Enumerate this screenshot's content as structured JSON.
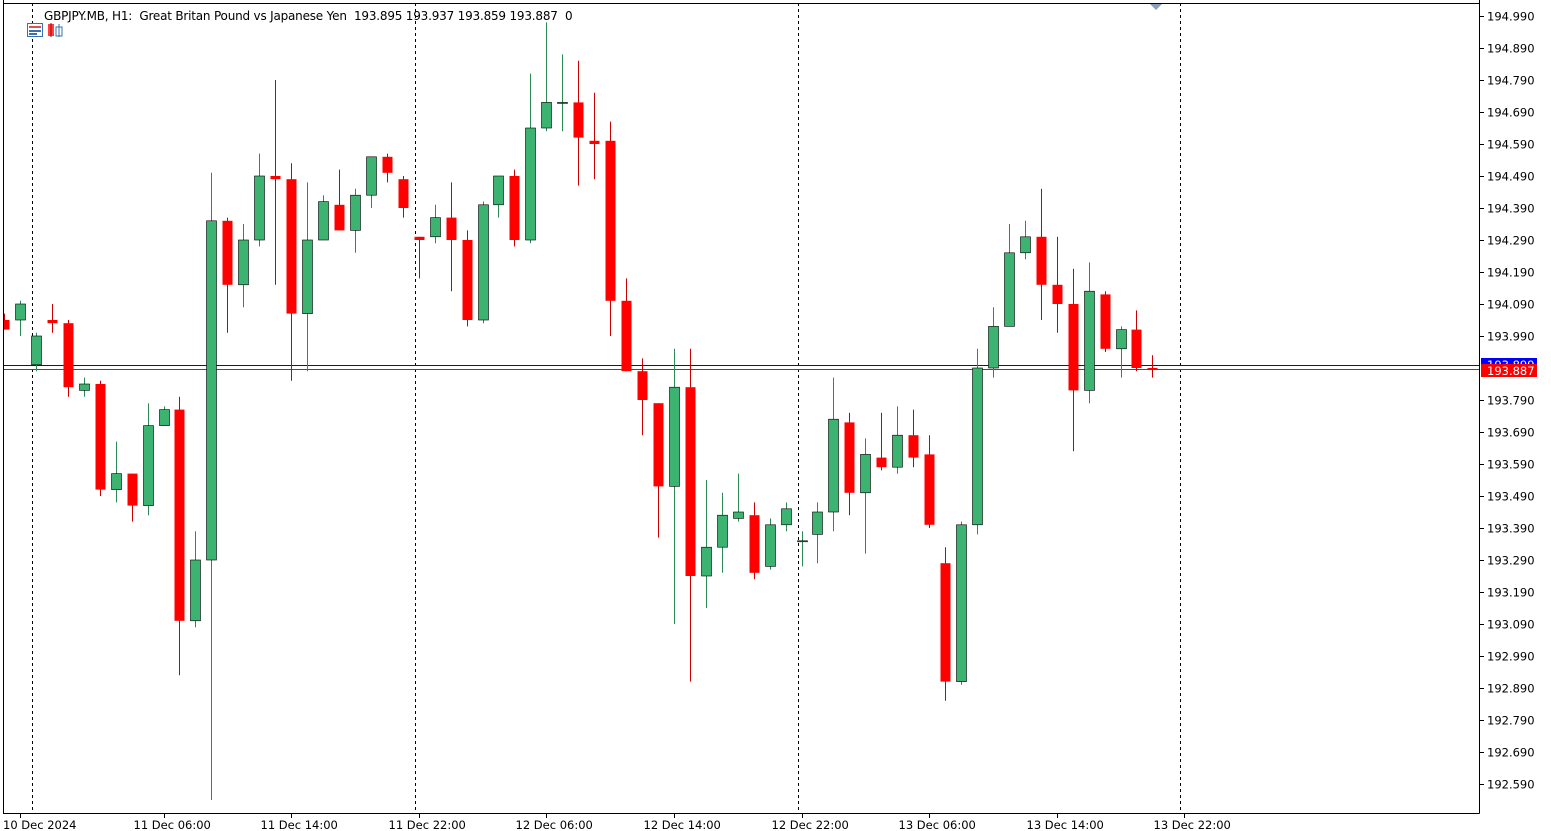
{
  "header": {
    "symbol": "GBPJPY.MB, H1:",
    "description": "Great Britan Pound vs Japanese Yen",
    "ohlc": "193.895 193.937 193.859 193.887",
    "volume": "0"
  },
  "colors": {
    "bull": "#3cb371",
    "bear": "#ff0000",
    "wick_bull": "#2e8b57",
    "wick_bear": "#cc0000",
    "bid_line": "#ff0000",
    "ask_line": "#0000ff",
    "grid": "#000000",
    "axis": "#000000"
  },
  "price_labels": {
    "ask": "193.899",
    "bid": "193.887"
  },
  "chart_data": {
    "type": "candlestick",
    "timeframe": "H1",
    "ylim": [
      192.51,
      195.02
    ],
    "y_ticks": [
      "194.990",
      "194.890",
      "194.790",
      "194.690",
      "194.590",
      "194.490",
      "194.390",
      "194.290",
      "194.190",
      "194.090",
      "193.990",
      "193.790",
      "193.690",
      "193.590",
      "193.490",
      "193.390",
      "193.290",
      "193.190",
      "193.090",
      "192.990",
      "192.890",
      "192.790",
      "192.690",
      "192.590"
    ],
    "x_labels": [
      "10 Dec 2024",
      "11 Dec 06:00",
      "11 Dec 14:00",
      "11 Dec 22:00",
      "12 Dec 06:00",
      "12 Dec 14:00",
      "12 Dec 22:00",
      "13 Dec 06:00",
      "13 Dec 14:00",
      "13 Dec 22:00"
    ],
    "x_label_bar_index": [
      1,
      10,
      18,
      26,
      34,
      42,
      50,
      58,
      66,
      74
    ],
    "day_separator_bar_index": [
      1.75,
      25.75,
      49.75,
      73.75
    ],
    "ask_price": 193.899,
    "bid_price": 193.887,
    "candles": [
      {
        "o": 194.04,
        "h": 194.06,
        "l": 194.01,
        "c": 194.01
      },
      {
        "o": 194.04,
        "h": 194.1,
        "l": 193.99,
        "c": 194.09
      },
      {
        "o": 193.9,
        "h": 194.0,
        "l": 193.88,
        "c": 193.99
      },
      {
        "o": 194.04,
        "h": 194.09,
        "l": 194.0,
        "c": 194.03
      },
      {
        "o": 194.03,
        "h": 194.04,
        "l": 193.8,
        "c": 193.83
      },
      {
        "o": 193.82,
        "h": 193.86,
        "l": 193.8,
        "c": 193.84
      },
      {
        "o": 193.84,
        "h": 193.85,
        "l": 193.49,
        "c": 193.51
      },
      {
        "o": 193.51,
        "h": 193.66,
        "l": 193.47,
        "c": 193.56
      },
      {
        "o": 193.56,
        "h": 193.56,
        "l": 193.41,
        "c": 193.46
      },
      {
        "o": 193.46,
        "h": 193.78,
        "l": 193.43,
        "c": 193.71
      },
      {
        "o": 193.71,
        "h": 193.77,
        "l": 193.71,
        "c": 193.76
      },
      {
        "o": 193.76,
        "h": 193.8,
        "l": 192.93,
        "c": 193.1
      },
      {
        "o": 193.1,
        "h": 193.38,
        "l": 193.08,
        "c": 193.29
      },
      {
        "o": 193.29,
        "h": 194.5,
        "l": 192.54,
        "c": 194.35
      },
      {
        "o": 194.35,
        "h": 194.36,
        "l": 194.0,
        "c": 194.15
      },
      {
        "o": 194.15,
        "h": 194.34,
        "l": 194.08,
        "c": 194.29
      },
      {
        "o": 194.29,
        "h": 194.56,
        "l": 194.27,
        "c": 194.49
      },
      {
        "o": 194.49,
        "h": 194.79,
        "l": 194.15,
        "c": 194.48
      },
      {
        "o": 194.48,
        "h": 194.53,
        "l": 193.85,
        "c": 194.06
      },
      {
        "o": 194.06,
        "h": 194.47,
        "l": 193.88,
        "c": 194.29
      },
      {
        "o": 194.29,
        "h": 194.43,
        "l": 194.29,
        "c": 194.41
      },
      {
        "o": 194.4,
        "h": 194.51,
        "l": 194.32,
        "c": 194.32
      },
      {
        "o": 194.32,
        "h": 194.45,
        "l": 194.25,
        "c": 194.43
      },
      {
        "o": 194.43,
        "h": 194.55,
        "l": 194.39,
        "c": 194.55
      },
      {
        "o": 194.55,
        "h": 194.56,
        "l": 194.47,
        "c": 194.5
      },
      {
        "o": 194.48,
        "h": 194.49,
        "l": 194.36,
        "c": 194.39
      },
      {
        "o": 194.3,
        "h": 194.3,
        "l": 194.17,
        "c": 194.29
      },
      {
        "o": 194.3,
        "h": 194.4,
        "l": 194.28,
        "c": 194.36
      },
      {
        "o": 194.36,
        "h": 194.47,
        "l": 194.13,
        "c": 194.29
      },
      {
        "o": 194.29,
        "h": 194.32,
        "l": 194.02,
        "c": 194.04
      },
      {
        "o": 194.04,
        "h": 194.41,
        "l": 194.03,
        "c": 194.4
      },
      {
        "o": 194.4,
        "h": 194.49,
        "l": 194.36,
        "c": 194.49
      },
      {
        "o": 194.49,
        "h": 194.51,
        "l": 194.27,
        "c": 194.29
      },
      {
        "o": 194.29,
        "h": 194.81,
        "l": 194.28,
        "c": 194.64
      },
      {
        "o": 194.64,
        "h": 194.97,
        "l": 194.63,
        "c": 194.72
      },
      {
        "o": 194.72,
        "h": 194.87,
        "l": 194.63,
        "c": 194.72
      },
      {
        "o": 194.72,
        "h": 194.85,
        "l": 194.46,
        "c": 194.61
      },
      {
        "o": 194.6,
        "h": 194.75,
        "l": 194.48,
        "c": 194.59
      },
      {
        "o": 194.6,
        "h": 194.66,
        "l": 193.99,
        "c": 194.1
      },
      {
        "o": 194.1,
        "h": 194.17,
        "l": 193.88,
        "c": 193.88
      },
      {
        "o": 193.88,
        "h": 193.92,
        "l": 193.68,
        "c": 193.79
      },
      {
        "o": 193.78,
        "h": 193.78,
        "l": 193.36,
        "c": 193.52
      },
      {
        "o": 193.52,
        "h": 193.95,
        "l": 193.09,
        "c": 193.83
      },
      {
        "o": 193.83,
        "h": 193.95,
        "l": 192.91,
        "c": 193.24
      },
      {
        "o": 193.24,
        "h": 193.54,
        "l": 193.14,
        "c": 193.33
      },
      {
        "o": 193.33,
        "h": 193.5,
        "l": 193.25,
        "c": 193.43
      },
      {
        "o": 193.42,
        "h": 193.56,
        "l": 193.41,
        "c": 193.44
      },
      {
        "o": 193.43,
        "h": 193.47,
        "l": 193.23,
        "c": 193.25
      },
      {
        "o": 193.27,
        "h": 193.42,
        "l": 193.26,
        "c": 193.4
      },
      {
        "o": 193.4,
        "h": 193.47,
        "l": 193.38,
        "c": 193.45
      },
      {
        "o": 193.35,
        "h": 193.38,
        "l": 193.27,
        "c": 193.35
      },
      {
        "o": 193.37,
        "h": 193.47,
        "l": 193.28,
        "c": 193.44
      },
      {
        "o": 193.44,
        "h": 193.86,
        "l": 193.38,
        "c": 193.73
      },
      {
        "o": 193.72,
        "h": 193.75,
        "l": 193.43,
        "c": 193.5
      },
      {
        "o": 193.5,
        "h": 193.67,
        "l": 193.31,
        "c": 193.62
      },
      {
        "o": 193.61,
        "h": 193.75,
        "l": 193.57,
        "c": 193.58
      },
      {
        "o": 193.58,
        "h": 193.77,
        "l": 193.56,
        "c": 193.68
      },
      {
        "o": 193.68,
        "h": 193.76,
        "l": 193.58,
        "c": 193.61
      },
      {
        "o": 193.62,
        "h": 193.68,
        "l": 193.39,
        "c": 193.4
      },
      {
        "o": 193.28,
        "h": 193.33,
        "l": 192.85,
        "c": 192.91
      },
      {
        "o": 192.91,
        "h": 193.41,
        "l": 192.9,
        "c": 193.4
      },
      {
        "o": 193.4,
        "h": 193.95,
        "l": 193.37,
        "c": 193.89
      },
      {
        "o": 193.89,
        "h": 194.08,
        "l": 193.86,
        "c": 194.02
      },
      {
        "o": 194.02,
        "h": 194.34,
        "l": 194.02,
        "c": 194.25
      },
      {
        "o": 194.25,
        "h": 194.35,
        "l": 194.23,
        "c": 194.3
      },
      {
        "o": 194.3,
        "h": 194.45,
        "l": 194.04,
        "c": 194.15
      },
      {
        "o": 194.15,
        "h": 194.3,
        "l": 194.0,
        "c": 194.09
      },
      {
        "o": 194.09,
        "h": 194.2,
        "l": 193.63,
        "c": 193.82
      },
      {
        "o": 193.82,
        "h": 194.22,
        "l": 193.78,
        "c": 194.13
      },
      {
        "o": 194.12,
        "h": 194.13,
        "l": 193.94,
        "c": 193.95
      },
      {
        "o": 193.95,
        "h": 194.02,
        "l": 193.86,
        "c": 194.01
      },
      {
        "o": 194.01,
        "h": 194.07,
        "l": 193.88,
        "c": 193.89
      },
      {
        "o": 193.89,
        "h": 193.93,
        "l": 193.86,
        "c": 193.887
      }
    ]
  }
}
